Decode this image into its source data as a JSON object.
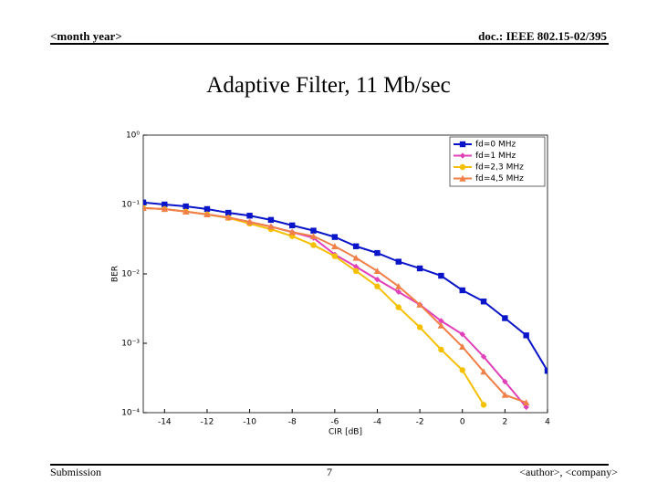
{
  "header": {
    "left": "<month year>",
    "right": "doc.: IEEE 802.15-02/395"
  },
  "footer": {
    "left": "Submission",
    "center": "7",
    "right": "<author>, <company>"
  },
  "chart_data": {
    "type": "line",
    "title": "Adaptive Filter, 11 Mb/sec",
    "x_label": "CIR [dB]",
    "y_label": "BER",
    "log_y": true,
    "legend": "top-right",
    "x": [
      -15,
      -14,
      -13,
      -12,
      -11,
      -10,
      -9,
      -8,
      -7,
      -6,
      -5,
      -4,
      -3,
      -2,
      -1,
      0,
      1,
      2,
      3,
      4
    ],
    "series": [
      {
        "name": "fd=0 MHz",
        "color": "#0a14c8",
        "marker": "square",
        "values": [
          0.107,
          0.1,
          0.094,
          0.086,
          0.076,
          0.069,
          0.06,
          0.05,
          0.042,
          0.034,
          0.025,
          0.02,
          0.015,
          0.012,
          0.0094,
          0.0058,
          0.004,
          0.0023,
          0.0013,
          0.0004
        ]
      },
      {
        "name": "fd=1 MHz",
        "color": "#e040b8",
        "marker": "diamond",
        "values": [
          0.089,
          0.086,
          0.079,
          0.072,
          0.065,
          0.056,
          0.048,
          0.04,
          0.033,
          0.019,
          0.0127,
          0.0083,
          0.0055,
          0.0036,
          0.0021,
          0.00135,
          0.00064,
          0.00028,
          0.00012,
          null
        ]
      },
      {
        "name": "fd=2,3 MHz",
        "color": "#f5c000",
        "marker": "circle",
        "values": [
          0.089,
          0.086,
          0.079,
          0.072,
          0.064,
          0.053,
          0.044,
          0.035,
          0.026,
          0.018,
          0.011,
          0.0066,
          0.0033,
          0.0017,
          0.00081,
          0.00041,
          0.00013,
          null,
          null,
          null
        ]
      },
      {
        "name": "fd=4,5 MHz",
        "color": "#f08048",
        "marker": "triangle",
        "values": [
          0.089,
          0.086,
          0.079,
          0.072,
          0.065,
          0.056,
          0.048,
          0.04,
          0.035,
          0.025,
          0.017,
          0.011,
          0.0066,
          0.0036,
          0.0018,
          0.00089,
          0.00039,
          0.00018,
          0.00014,
          null
        ]
      }
    ],
    "xlim": [
      -15,
      4
    ],
    "xticks": [
      -14,
      -12,
      -10,
      -8,
      -6,
      -4,
      -2,
      0,
      2,
      4
    ],
    "ylim": [
      0.0001,
      1
    ],
    "yticks": [
      {
        "value": 0.0001,
        "label": "10⁻⁴"
      },
      {
        "value": 0.001,
        "label": "10⁻³"
      },
      {
        "value": 0.01,
        "label": "10⁻²"
      },
      {
        "value": 0.1,
        "label": "10⁻¹"
      },
      {
        "value": 1,
        "label": "10⁰"
      }
    ]
  }
}
